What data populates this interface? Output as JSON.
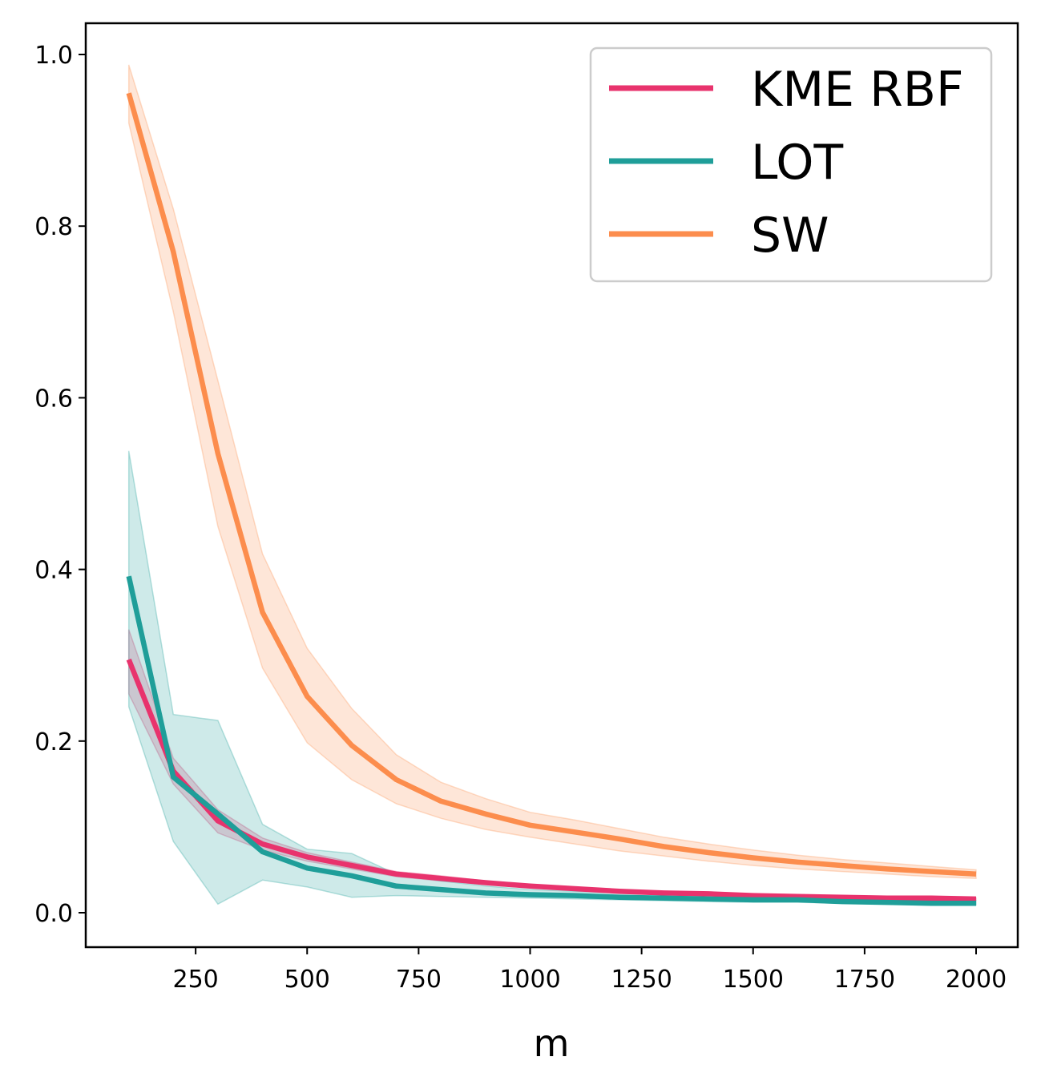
{
  "chart_data": {
    "type": "line",
    "title": "",
    "xlabel": "m",
    "ylabel": "",
    "xlim": [
      0,
      2100
    ],
    "ylim": [
      -0.04,
      1.04
    ],
    "x_ticks": [
      250,
      500,
      750,
      1000,
      1250,
      1500,
      1750,
      2000
    ],
    "x_tick_labels": [
      "250",
      "500",
      "750",
      "1000",
      "1250",
      "1500",
      "1750",
      "2000"
    ],
    "y_ticks": [
      0.0,
      0.2,
      0.4,
      0.6,
      0.8,
      1.0
    ],
    "y_tick_labels": [
      "0.0",
      "0.2",
      "0.4",
      "0.6",
      "0.8",
      "1.0"
    ],
    "grid": false,
    "legend_position": "top-right",
    "x": [
      100,
      200,
      300,
      400,
      500,
      600,
      700,
      800,
      900,
      1000,
      1100,
      1200,
      1300,
      1400,
      1500,
      1600,
      1700,
      1800,
      1900,
      2000
    ],
    "series": [
      {
        "name": "KME RBF",
        "color": "#e8336d",
        "values": [
          0.295,
          0.165,
          0.107,
          0.08,
          0.065,
          0.055,
          0.045,
          0.04,
          0.035,
          0.031,
          0.028,
          0.025,
          0.023,
          0.022,
          0.02,
          0.019,
          0.018,
          0.017,
          0.017,
          0.016
        ],
        "lower": [
          0.255,
          0.15,
          0.093,
          0.073,
          0.06,
          0.051,
          0.042,
          0.037,
          0.033,
          0.029,
          0.026,
          0.024,
          0.022,
          0.021,
          0.019,
          0.018,
          0.017,
          0.016,
          0.016,
          0.015
        ],
        "upper": [
          0.33,
          0.18,
          0.12,
          0.087,
          0.07,
          0.059,
          0.048,
          0.043,
          0.037,
          0.033,
          0.03,
          0.026,
          0.024,
          0.023,
          0.021,
          0.02,
          0.019,
          0.018,
          0.018,
          0.017
        ]
      },
      {
        "name": "LOT",
        "color": "#1f9e99",
        "values": [
          0.392,
          0.158,
          0.115,
          0.071,
          0.052,
          0.043,
          0.031,
          0.027,
          0.023,
          0.021,
          0.02,
          0.018,
          0.017,
          0.016,
          0.015,
          0.015,
          0.013,
          0.012,
          0.011,
          0.011
        ],
        "lower": [
          0.24,
          0.083,
          0.01,
          0.038,
          0.03,
          0.018,
          0.02,
          0.019,
          0.018,
          0.017,
          0.016,
          0.015,
          0.014,
          0.013,
          0.012,
          0.012,
          0.011,
          0.01,
          0.009,
          0.009
        ],
        "upper": [
          0.538,
          0.231,
          0.224,
          0.103,
          0.074,
          0.069,
          0.045,
          0.037,
          0.031,
          0.027,
          0.025,
          0.023,
          0.021,
          0.02,
          0.019,
          0.018,
          0.016,
          0.015,
          0.014,
          0.014
        ]
      },
      {
        "name": "SW",
        "color": "#fc8d4d",
        "values": [
          0.955,
          0.77,
          0.535,
          0.35,
          0.252,
          0.195,
          0.155,
          0.13,
          0.115,
          0.102,
          0.094,
          0.086,
          0.077,
          0.07,
          0.064,
          0.059,
          0.055,
          0.051,
          0.048,
          0.045
        ],
        "lower": [
          0.92,
          0.7,
          0.45,
          0.285,
          0.198,
          0.155,
          0.127,
          0.11,
          0.097,
          0.088,
          0.08,
          0.072,
          0.066,
          0.06,
          0.055,
          0.051,
          0.048,
          0.045,
          0.042,
          0.04
        ],
        "upper": [
          0.988,
          0.82,
          0.62,
          0.418,
          0.308,
          0.238,
          0.184,
          0.152,
          0.133,
          0.117,
          0.108,
          0.098,
          0.088,
          0.08,
          0.073,
          0.067,
          0.062,
          0.058,
          0.054,
          0.05
        ]
      }
    ]
  }
}
